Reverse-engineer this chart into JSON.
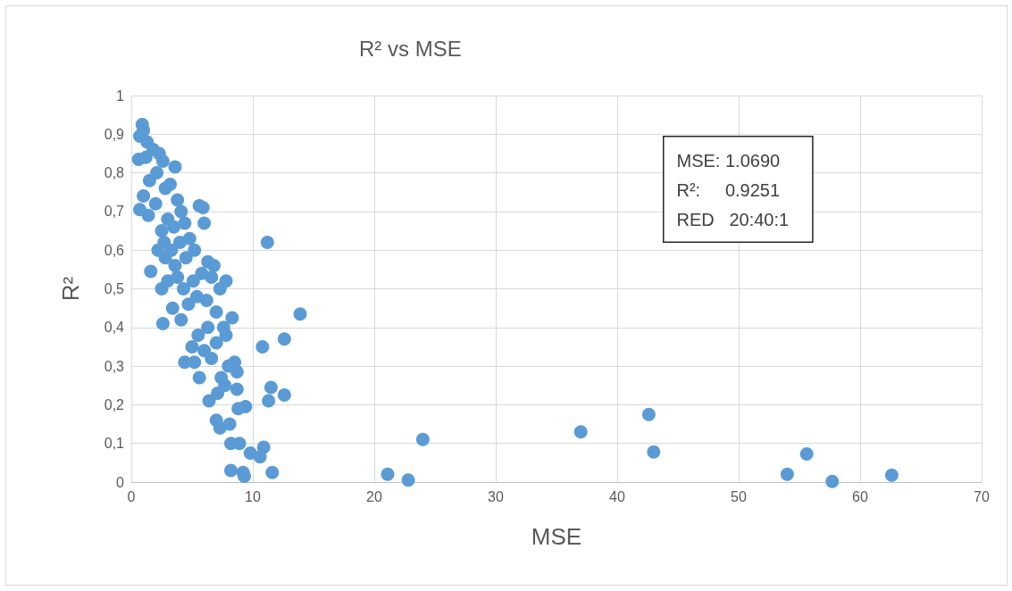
{
  "chart_data": {
    "type": "scatter",
    "title": "R² vs MSE",
    "xlabel": "MSE",
    "ylabel": "R²",
    "annotations": [
      "MSE: 1.0690",
      "R²:     0.9251",
      "RED   20:40:1"
    ],
    "xlim": [
      0,
      70
    ],
    "xticks": [
      0,
      10,
      20,
      30,
      40,
      50,
      60,
      70
    ],
    "ylim": [
      0,
      1
    ],
    "yticks": [
      0,
      {
        "value": 0.1,
        "label": "0,1"
      },
      {
        "value": 0.2,
        "label": "0,2"
      },
      {
        "value": 0.3,
        "label": "0,3"
      },
      {
        "value": 0.4,
        "label": "0,4"
      },
      {
        "value": 0.5,
        "label": "0,5"
      },
      {
        "value": 0.6,
        "label": "0,6"
      },
      {
        "value": 0.7,
        "label": "0,7"
      },
      {
        "value": 0.8,
        "label": "0,8"
      },
      {
        "value": 0.9,
        "label": "0,9"
      },
      1
    ],
    "grid": true,
    "marker": "circle",
    "series": [
      {
        "color": "#5b9bd5",
        "x": [
          0.9,
          1,
          0.7,
          1.3,
          0.6,
          1.2,
          1.8,
          2.3,
          2.6,
          3.6,
          2.1,
          1.5,
          1,
          0.7,
          1.4,
          2,
          2.8,
          3.2,
          3.8,
          4.1,
          5.6,
          5.9,
          6,
          2.5,
          3,
          3.5,
          4.4,
          2.2,
          2.7,
          3.3,
          4,
          4.8,
          1.6,
          2.8,
          3.6,
          4.5,
          5.2,
          6.3,
          6.8,
          2.5,
          3,
          3.8,
          4.3,
          5.1,
          5.8,
          7.3,
          7.8,
          6.6,
          2.6,
          3.4,
          4.1,
          4.7,
          5.4,
          6.2,
          7,
          8.3,
          7.6,
          4.4,
          5,
          5.5,
          6.3,
          7,
          7.8,
          5.2,
          5.6,
          6,
          6.6,
          6.4,
          7.1,
          7.4,
          8,
          8.5,
          8.7,
          7.7,
          11.2,
          13.9,
          12.6,
          10.8,
          11.5,
          12.6,
          11.3,
          9.4,
          8.8,
          8.7,
          7,
          7.3,
          8.1,
          8.2,
          8.9,
          9.8,
          10.9,
          10.6,
          8.2,
          9.2,
          9.3,
          11.6,
          21.1,
          22.8,
          24,
          37,
          42.6,
          43,
          54,
          55.6,
          57.7,
          62.6
        ],
        "values": [
          0.925,
          0.91,
          0.895,
          0.88,
          0.835,
          0.84,
          0.86,
          0.85,
          0.83,
          0.815,
          0.8,
          0.78,
          0.74,
          0.705,
          0.69,
          0.72,
          0.76,
          0.77,
          0.73,
          0.7,
          0.715,
          0.71,
          0.67,
          0.65,
          0.68,
          0.66,
          0.67,
          0.6,
          0.62,
          0.6,
          0.62,
          0.63,
          0.545,
          0.58,
          0.56,
          0.58,
          0.6,
          0.57,
          0.56,
          0.5,
          0.52,
          0.53,
          0.5,
          0.52,
          0.54,
          0.5,
          0.52,
          0.53,
          0.41,
          0.45,
          0.42,
          0.46,
          0.48,
          0.47,
          0.44,
          0.425,
          0.4,
          0.31,
          0.35,
          0.38,
          0.4,
          0.36,
          0.38,
          0.31,
          0.27,
          0.34,
          0.32,
          0.21,
          0.23,
          0.27,
          0.3,
          0.31,
          0.285,
          0.25,
          0.62,
          0.435,
          0.37,
          0.35,
          0.245,
          0.225,
          0.21,
          0.195,
          0.19,
          0.24,
          0.16,
          0.14,
          0.15,
          0.1,
          0.1,
          0.075,
          0.09,
          0.065,
          0.03,
          0.025,
          0.015,
          0.025,
          0.02,
          0.005,
          0.11,
          0.13,
          0.175,
          0.078,
          0.02,
          0.073,
          0.002,
          0.018
        ]
      }
    ]
  }
}
